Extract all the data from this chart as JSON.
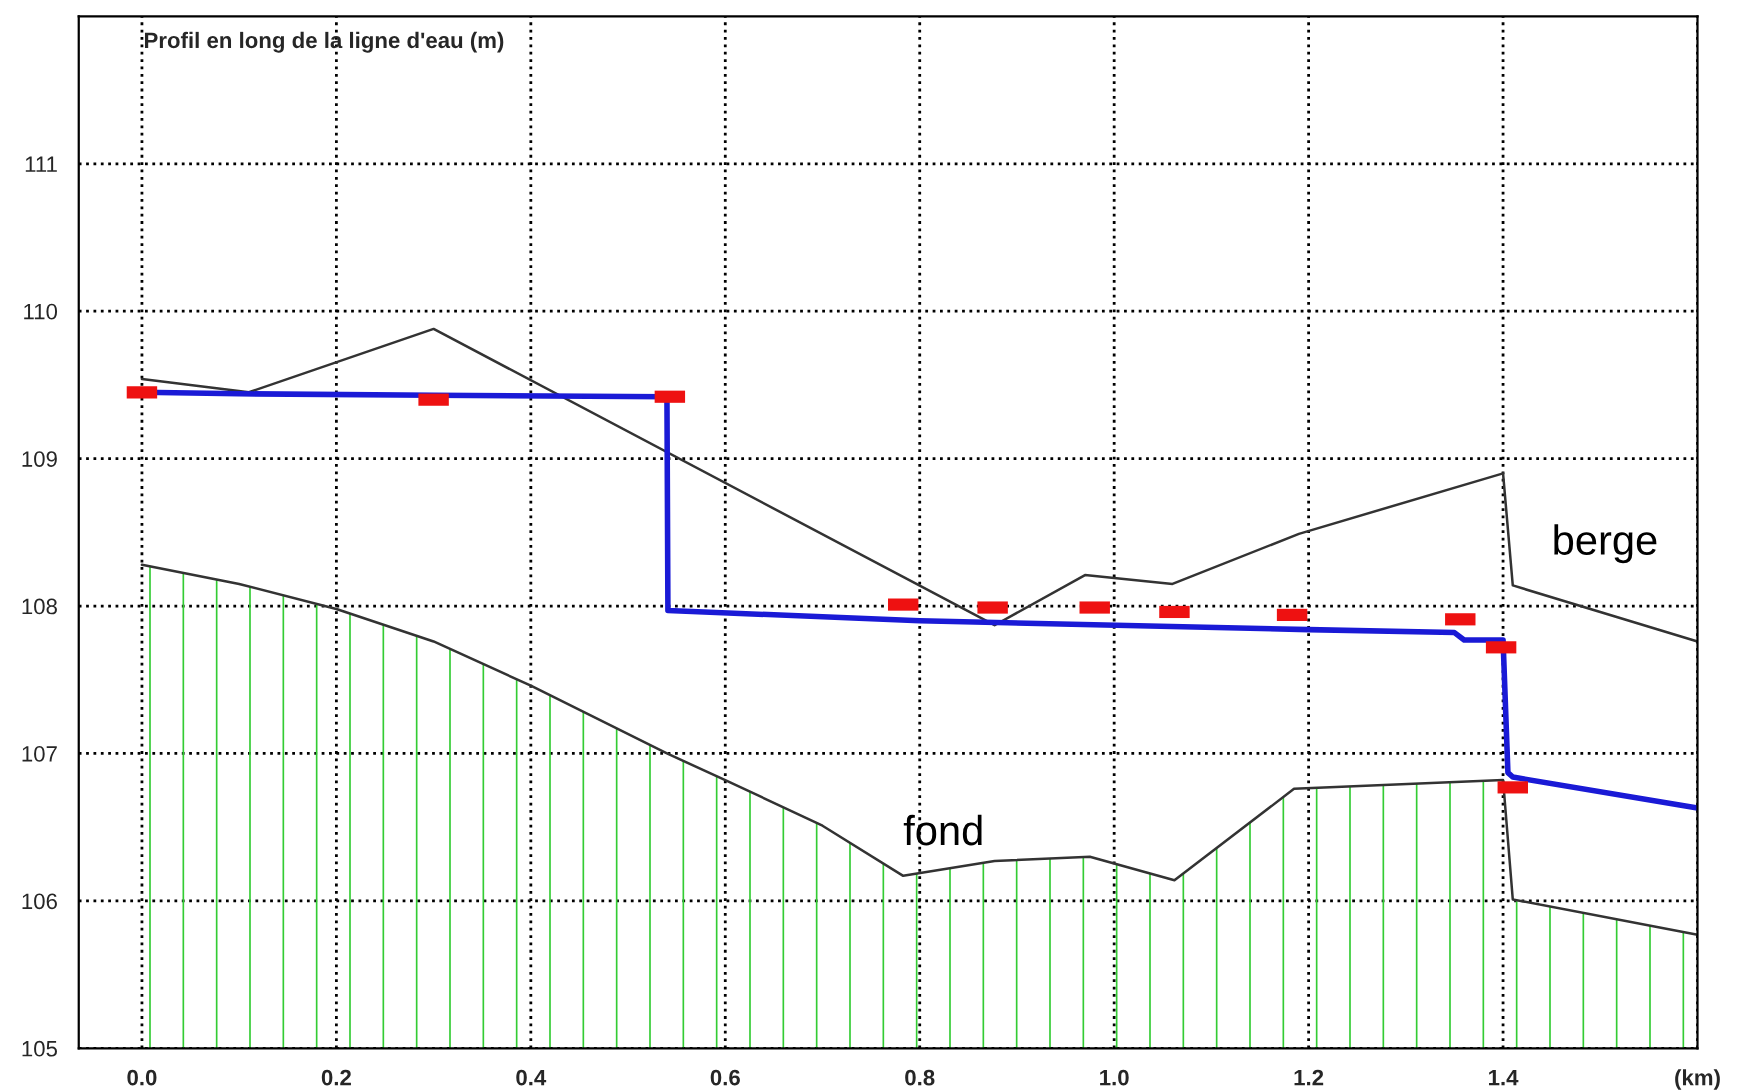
{
  "chart_data": {
    "type": "line",
    "title": "Profil en long de la ligne d'eau (m)",
    "xlim": [
      -0.065,
      1.6
    ],
    "ylim": [
      105,
      112
    ],
    "xticks": [
      {
        "value": 0,
        "label": "0.0"
      },
      0.2,
      0.4,
      0.6,
      0.8,
      {
        "value": 1,
        "label": "1.0"
      },
      1.2,
      1.4,
      {
        "value": 1.6,
        "label": "(km)"
      }
    ],
    "yticks": [
      105,
      106,
      107,
      108,
      109,
      110,
      111
    ],
    "grid": true,
    "legend": false,
    "series": [
      {
        "name": "berge",
        "color": "#333333",
        "x": [
          0.0,
          0.11,
          0.3,
          0.877,
          0.97,
          1.06,
          1.19,
          1.4,
          1.41,
          1.6
        ],
        "values": [
          109.54,
          109.45,
          109.88,
          107.87,
          108.21,
          108.15,
          108.49,
          108.9,
          108.14,
          107.76
        ]
      },
      {
        "name": "fond",
        "type": "area",
        "color": "#333333",
        "x": [
          0.0,
          0.1,
          0.2,
          0.3,
          0.4,
          0.54,
          0.6,
          0.7,
          0.783,
          0.877,
          0.975,
          1.062,
          1.185,
          1.4,
          1.41,
          1.6
        ],
        "values": [
          108.28,
          108.15,
          107.98,
          107.76,
          107.46,
          107.0,
          106.82,
          106.51,
          106.17,
          106.27,
          106.3,
          106.14,
          106.76,
          106.82,
          106.01,
          105.77
        ]
      },
      {
        "color": "#1a1ad6",
        "x": [
          0.0,
          0.1,
          0.3,
          0.54,
          0.541,
          0.8,
          1.2,
          1.35,
          1.36,
          1.4,
          1.405,
          1.41,
          1.6
        ],
        "values": [
          109.45,
          109.44,
          109.43,
          109.42,
          107.97,
          107.9,
          107.84,
          107.82,
          107.77,
          107.77,
          106.87,
          106.84,
          106.63
        ]
      },
      {
        "type": "scatter",
        "marker": "square",
        "color": "#ee1111",
        "x": [
          0.0,
          0.3,
          0.543,
          0.783,
          0.875,
          0.98,
          1.062,
          1.183,
          1.356,
          1.398,
          1.41
        ],
        "values": [
          109.45,
          109.4,
          109.42,
          108.01,
          107.99,
          107.99,
          107.96,
          107.94,
          107.91,
          107.72,
          106.77
        ]
      }
    ]
  }
}
